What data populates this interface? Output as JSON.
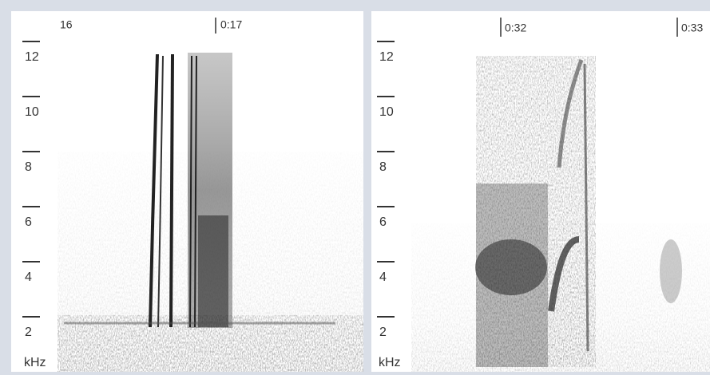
{
  "panels": [
    {
      "time_labels": [
        "16",
        "0:17"
      ],
      "yticks": [
        2,
        4,
        6,
        8,
        10,
        12
      ],
      "unit": "kHz"
    },
    {
      "time_labels": [
        "0:32",
        "0:33"
      ],
      "yticks": [
        2,
        4,
        6,
        8,
        10,
        12
      ],
      "unit": "kHz"
    }
  ]
}
